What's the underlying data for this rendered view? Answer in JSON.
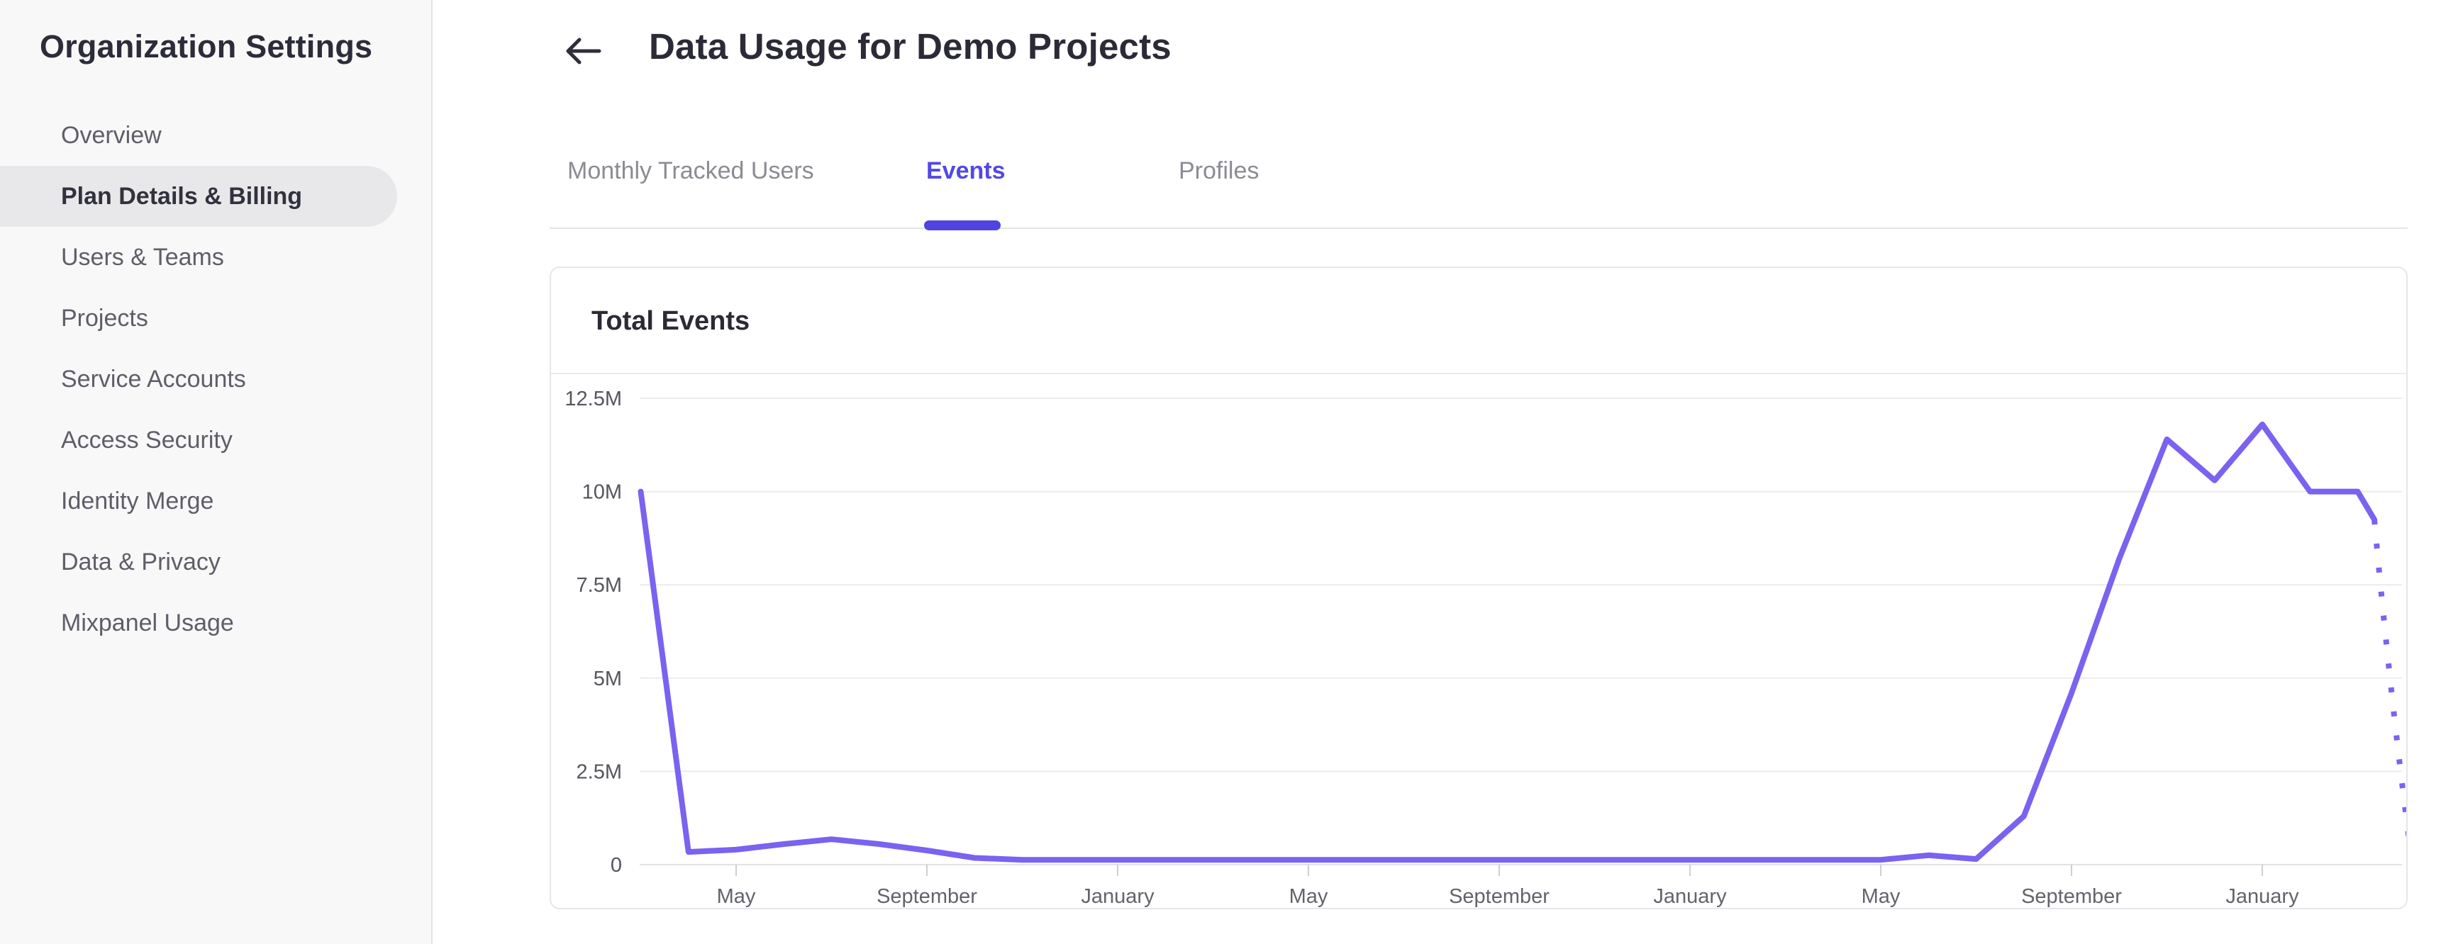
{
  "sidebar": {
    "title": "Organization Settings",
    "items": [
      {
        "label": "Overview",
        "active": false
      },
      {
        "label": "Plan Details & Billing",
        "active": true
      },
      {
        "label": "Users & Teams",
        "active": false
      },
      {
        "label": "Projects",
        "active": false
      },
      {
        "label": "Service Accounts",
        "active": false
      },
      {
        "label": "Access Security",
        "active": false
      },
      {
        "label": "Identity Merge",
        "active": false
      },
      {
        "label": "Data & Privacy",
        "active": false
      },
      {
        "label": "Mixpanel Usage",
        "active": false
      }
    ]
  },
  "header": {
    "title": "Data Usage for Demo Projects",
    "back_icon": "arrow-left"
  },
  "tabs": [
    {
      "label": "Monthly Tracked Users",
      "active": false
    },
    {
      "label": "Events",
      "active": true
    },
    {
      "label": "Profiles",
      "active": false
    }
  ],
  "card": {
    "title": "Total Events"
  },
  "colors": {
    "accent_indigo": "#4f44e0",
    "tab_active_text": "#5247e5",
    "chart_line": "#7b62f0",
    "gridline": "#ececef",
    "sidebar_bg": "#f8f8f9",
    "active_pill": "#e8e8ea",
    "heading_text": "#2b2b38",
    "muted_text": "#5e5e68"
  },
  "chart_data": {
    "type": "line",
    "title": "Total Events",
    "xlabel": "",
    "ylabel": "",
    "grid": true,
    "legend": false,
    "ylim_millions": [
      0,
      12.5
    ],
    "y_ticks": [
      "0",
      "2.5M",
      "5M",
      "7.5M",
      "10M",
      "12.5M"
    ],
    "y_tick_values_millions": [
      0,
      2.5,
      5,
      7.5,
      10,
      12.5
    ],
    "x_tick_labels": [
      "May",
      "September",
      "January",
      "May",
      "September",
      "January",
      "May",
      "September",
      "January"
    ],
    "x_tick_month_index": [
      2,
      6,
      10,
      14,
      18,
      22,
      26,
      30,
      34
    ],
    "series": [
      {
        "name": "Total Events",
        "color": "#7b62f0",
        "month_index_start": 0,
        "values_millions": [
          10,
          0.34,
          0.4,
          0.55,
          0.68,
          0.55,
          0.38,
          0.18,
          0.13,
          0.13,
          0.13,
          0.13,
          0.13,
          0.13,
          0.13,
          0.13,
          0.13,
          0.13,
          0.13,
          0.13,
          0.13,
          0.13,
          0.13,
          0.13,
          0.13,
          0.13,
          0.13,
          0.25,
          0.15,
          1.3,
          4.6,
          8.2,
          11.4,
          10.3,
          11.8,
          10,
          10
        ],
        "tail_point": {
          "month_index": 36.35,
          "value_millions": 9.25
        }
      }
    ],
    "projection": {
      "style": "dotted",
      "points_millions": [
        [
          36.35,
          9.25
        ],
        [
          36.68,
          4.6
        ],
        [
          37.1,
          0.45
        ]
      ]
    }
  }
}
